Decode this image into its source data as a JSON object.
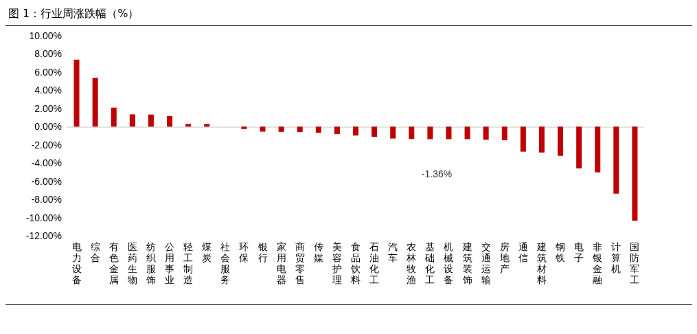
{
  "chart_data": {
    "type": "bar",
    "title": "图 1：行业周涨跌幅（%）",
    "categories": [
      "电力设备",
      "综合",
      "有色金属",
      "医药生物",
      "纺织服饰",
      "公用事业",
      "轻工制造",
      "煤炭",
      "社会服务",
      "环保",
      "银行",
      "家用电器",
      "商贸零售",
      "传媒",
      "美容护理",
      "食品饮料",
      "石油化工",
      "汽车",
      "农林牧渔",
      "基础化工",
      "机械设备",
      "建筑装饰",
      "交通运输",
      "房地产",
      "通信",
      "建筑材料",
      "钢铁",
      "电子",
      "非银金融",
      "计算机",
      "国防军工"
    ],
    "values": [
      7.38,
      5.38,
      2.09,
      1.35,
      1.33,
      1.17,
      0.3,
      0.3,
      0,
      -0.27,
      -0.55,
      -0.57,
      -0.6,
      -0.68,
      -0.82,
      -0.98,
      -1.12,
      -1.31,
      -1.36,
      -1.38,
      -1.38,
      -1.38,
      -1.44,
      -1.5,
      -2.75,
      -2.85,
      -3.21,
      -4.6,
      -5.03,
      -7.37,
      -10.35
    ],
    "color": "#c00000",
    "ylim": [
      -12,
      10
    ],
    "yticks": [
      {
        "value": -12,
        "label": "-12.00%"
      },
      {
        "value": -10,
        "label": "-10.00%"
      },
      {
        "value": -8,
        "label": "-8.00%"
      },
      {
        "value": -6,
        "label": "-6.00%"
      },
      {
        "value": -4,
        "label": "-4.00%"
      },
      {
        "value": -2,
        "label": "-2.00%"
      },
      {
        "value": 0,
        "label": "0.00%"
      },
      {
        "value": 2,
        "label": "2.00%"
      },
      {
        "value": 4,
        "label": "4.00%"
      },
      {
        "value": 6,
        "label": "6.00%"
      },
      {
        "value": 8,
        "label": "8.00%"
      },
      {
        "value": 10,
        "label": "10.00%"
      }
    ],
    "annotations": [
      "-1.36%"
    ]
  }
}
